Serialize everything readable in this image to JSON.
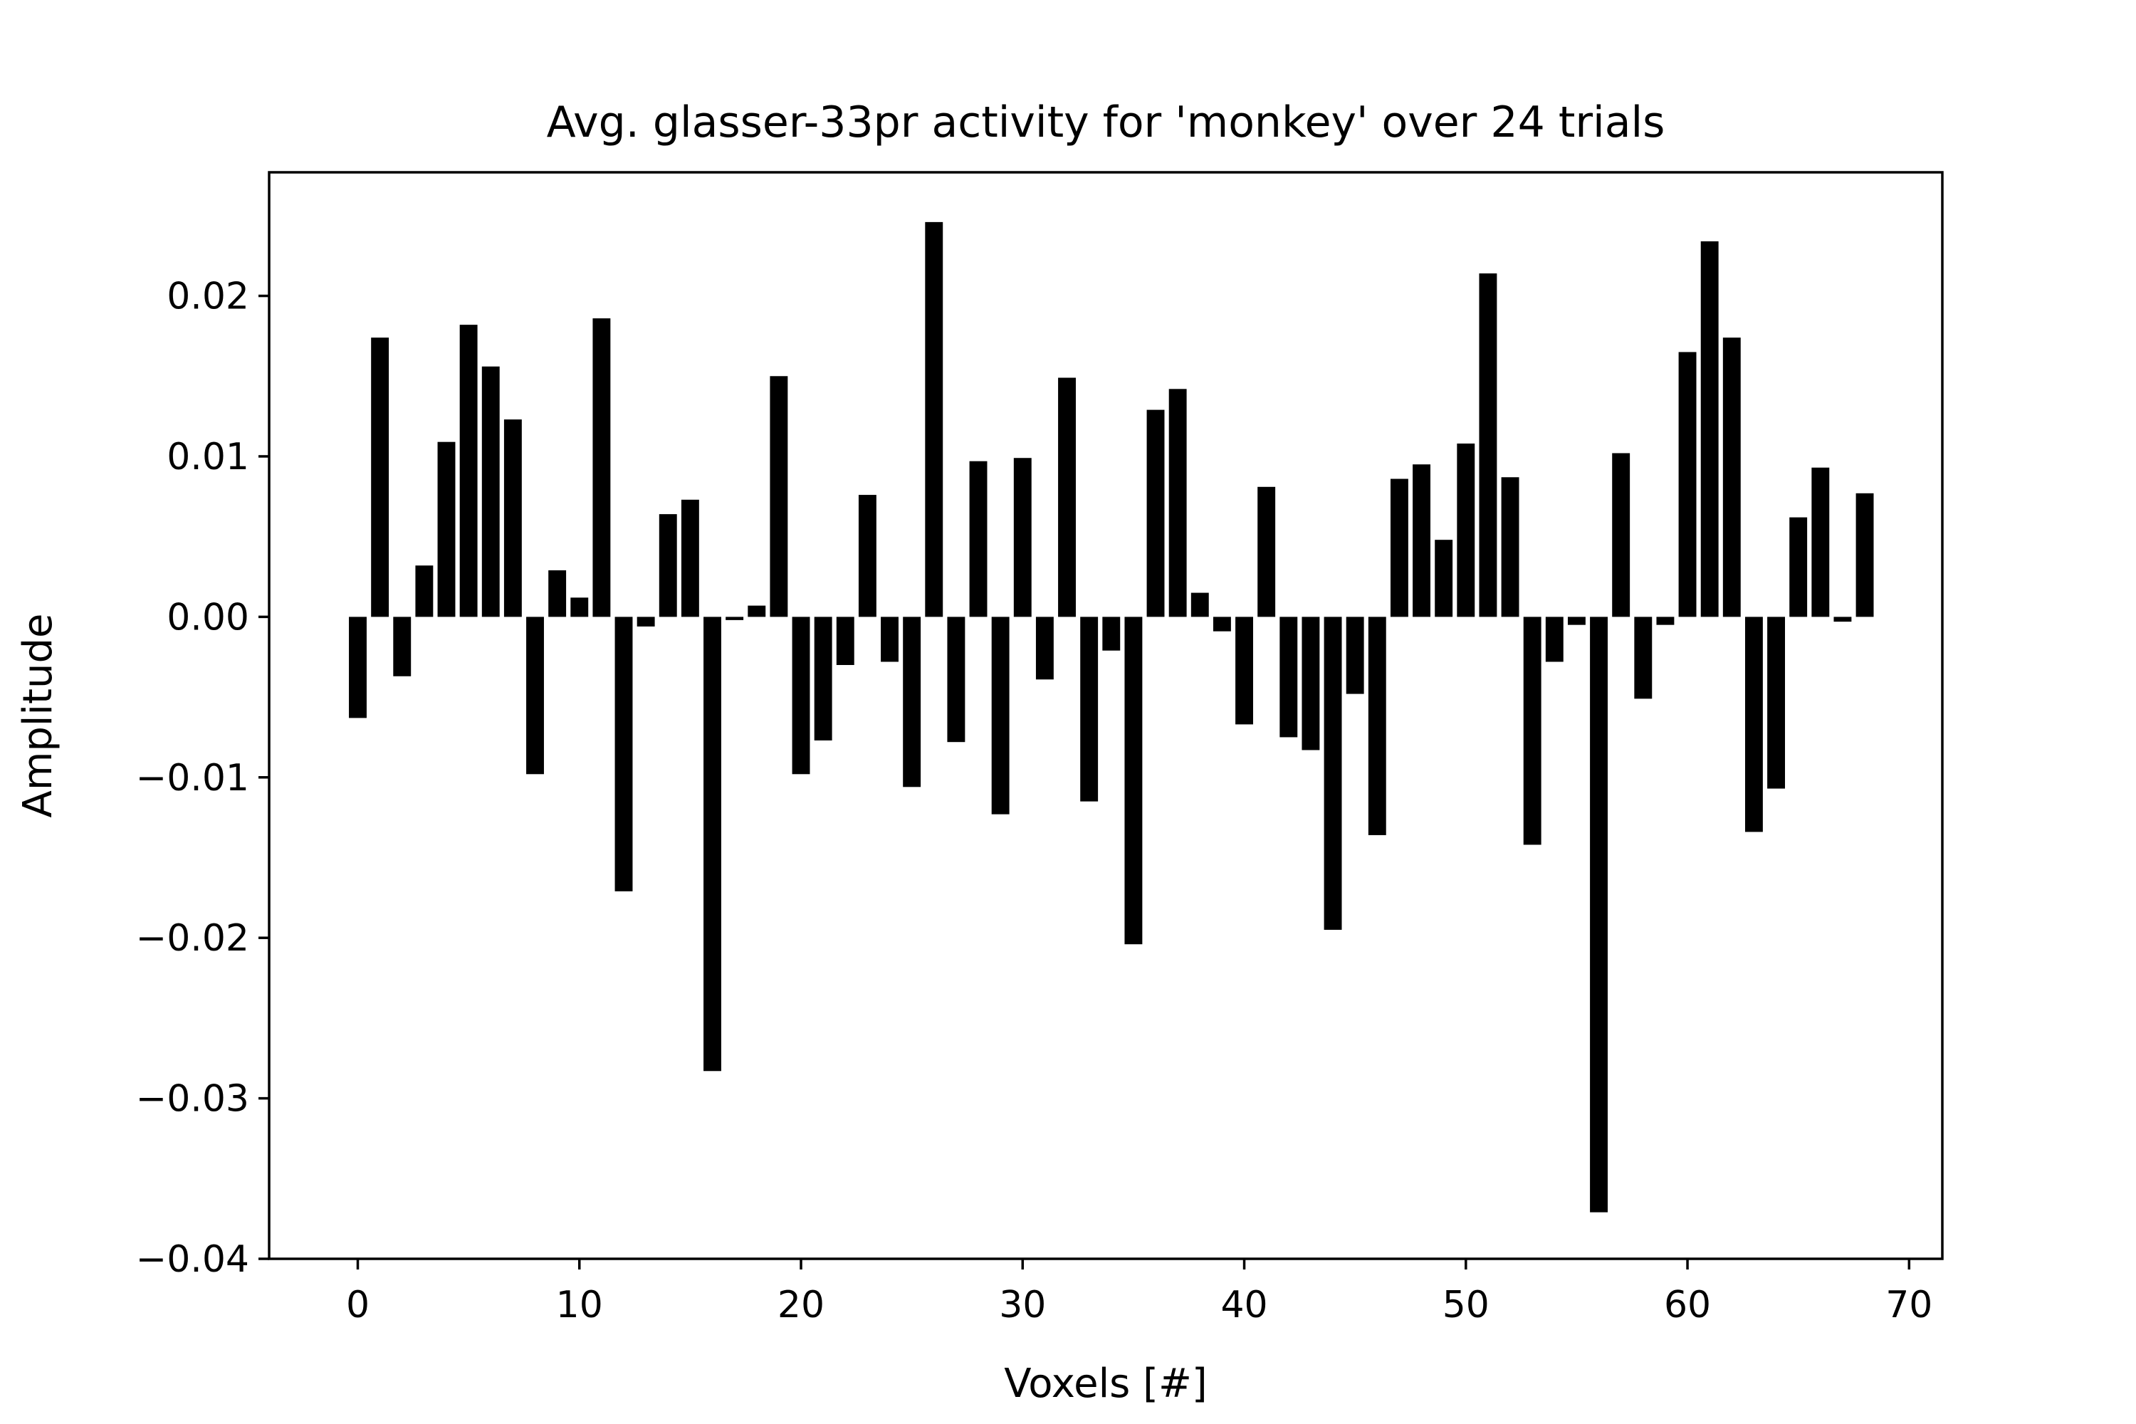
{
  "chart_data": {
    "type": "bar",
    "title": "Avg. glasser-33pr activity for 'monkey' over 24 trials",
    "xlabel": "Voxels [#]",
    "ylabel": "Amplitude",
    "xlim": [
      -4,
      71.5
    ],
    "ylim": [
      -0.04,
      0.0277
    ],
    "xticks": [
      0,
      10,
      20,
      30,
      40,
      50,
      60,
      70
    ],
    "xtick_labels": [
      "0",
      "10",
      "20",
      "30",
      "40",
      "50",
      "60",
      "70"
    ],
    "yticks": [
      0.02,
      0.01,
      0.0,
      -0.01,
      -0.02,
      -0.03,
      -0.04
    ],
    "ytick_labels": [
      "0.02",
      "0.01",
      "0.00",
      "−0.01",
      "−0.02",
      "−0.03",
      "−0.04"
    ],
    "grid": false,
    "bar_color": "#000000",
    "x": [
      0,
      1,
      2,
      3,
      4,
      5,
      6,
      7,
      8,
      9,
      10,
      11,
      12,
      13,
      14,
      15,
      16,
      17,
      18,
      19,
      20,
      21,
      22,
      23,
      24,
      25,
      26,
      27,
      28,
      29,
      30,
      31,
      32,
      33,
      34,
      35,
      36,
      37,
      38,
      39,
      40,
      41,
      42,
      43,
      44,
      45,
      46,
      47,
      48,
      49,
      50,
      51,
      52,
      53,
      54,
      55,
      56,
      57,
      58,
      59,
      60,
      61,
      62,
      63,
      64,
      65,
      66,
      67,
      68
    ],
    "values": [
      -0.0063,
      0.0174,
      -0.0037,
      0.0032,
      0.0109,
      0.0182,
      0.0156,
      0.0123,
      -0.0098,
      0.0029,
      0.0012,
      0.0186,
      -0.0171,
      -0.0006,
      0.0064,
      0.0073,
      -0.0283,
      -0.0002,
      0.0007,
      0.015,
      -0.0098,
      -0.0077,
      -0.003,
      0.0076,
      -0.0028,
      -0.0106,
      0.0246,
      -0.0078,
      0.0097,
      -0.0123,
      0.0099,
      -0.0039,
      0.0149,
      -0.0115,
      -0.0021,
      -0.0204,
      0.0129,
      0.0142,
      0.0015,
      -0.0009,
      -0.0067,
      0.0081,
      -0.0075,
      -0.0083,
      -0.0195,
      -0.0048,
      -0.0136,
      0.0086,
      0.0095,
      0.0048,
      0.0108,
      0.0214,
      0.0087,
      -0.0142,
      -0.0028,
      -0.0005,
      -0.0371,
      0.0102,
      -0.0051,
      -0.0005,
      0.0165,
      0.0234,
      0.0174,
      -0.0134,
      -0.0107,
      0.0062,
      0.0093,
      -0.0003,
      0.0077
    ]
  }
}
